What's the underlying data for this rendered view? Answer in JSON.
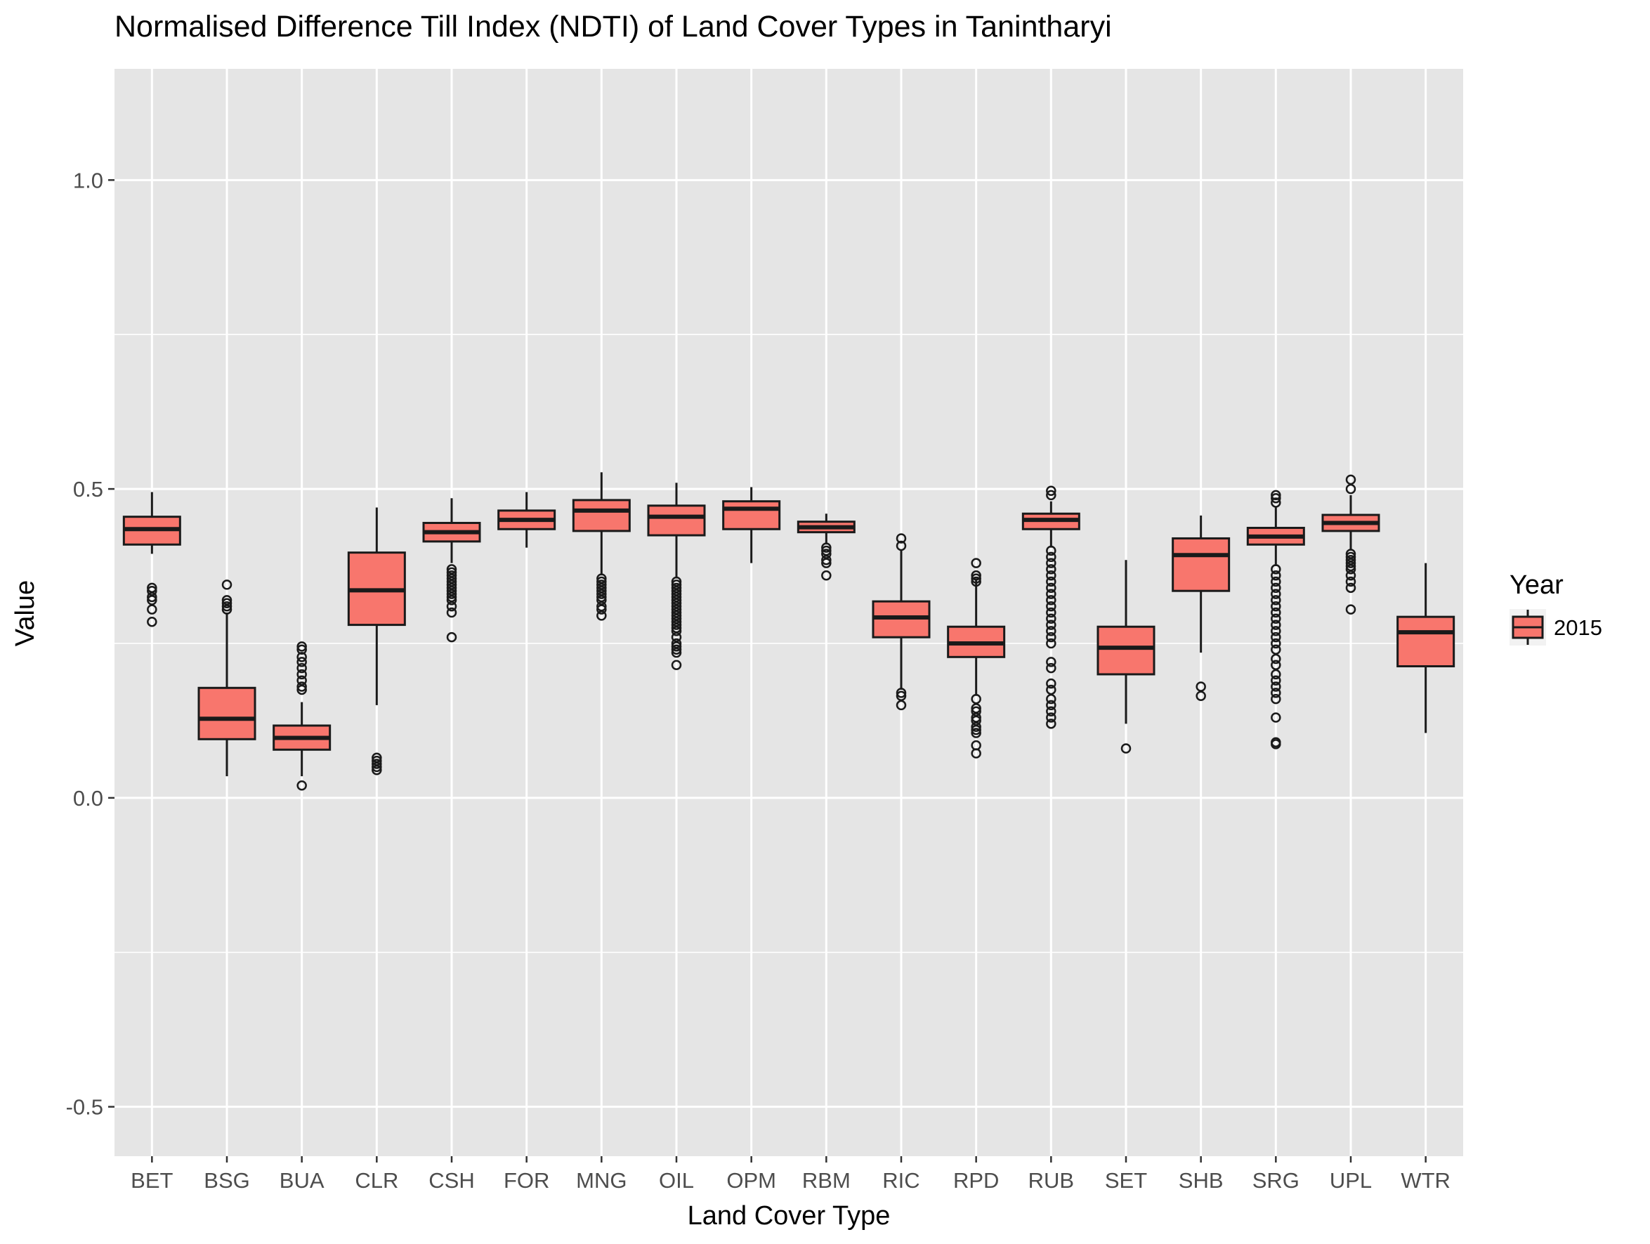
{
  "chart_data": {
    "type": "boxplot",
    "title": "Normalised Difference Till Index (NDTI) of Land Cover Types in Tanintharyi",
    "xlabel": "Land Cover Type",
    "ylabel": "Value",
    "ylim": [
      -0.58,
      1.18
    ],
    "y_ticks": [
      -0.5,
      0.0,
      0.5,
      1.0
    ],
    "y_tick_labels": [
      "-0.5",
      "0.0",
      "0.5",
      "1.0"
    ],
    "grid": true,
    "legend": {
      "title": "Year",
      "position": "right",
      "entries": [
        "2015"
      ]
    },
    "colors": {
      "fill": "#f8766d",
      "panel": "#e5e5e5",
      "grid": "#ffffff",
      "stroke": "#1a1a1a"
    },
    "categories": [
      "BET",
      "BSG",
      "BUA",
      "CLR",
      "CSH",
      "FOR",
      "MNG",
      "OIL",
      "OPM",
      "RBM",
      "RIC",
      "RPD",
      "RUB",
      "SET",
      "SHB",
      "SRG",
      "UPL",
      "WTR"
    ],
    "series": [
      {
        "name": "2015",
        "boxes": [
          {
            "min": 0.395,
            "q1": 0.41,
            "median": 0.435,
            "q3": 0.455,
            "max": 0.495,
            "outliers": [
              0.34,
              0.335,
              0.325,
              0.32,
              0.305,
              0.285
            ]
          },
          {
            "min": 0.035,
            "q1": 0.095,
            "median": 0.128,
            "q3": 0.178,
            "max": 0.3,
            "outliers": [
              0.345,
              0.32,
              0.315,
              0.31,
              0.305
            ]
          },
          {
            "min": 0.035,
            "q1": 0.078,
            "median": 0.097,
            "q3": 0.117,
            "max": 0.155,
            "outliers": [
              0.245,
              0.24,
              0.228,
              0.22,
              0.21,
              0.2,
              0.19,
              0.18,
              0.175,
              0.02
            ]
          },
          {
            "min": 0.15,
            "q1": 0.28,
            "median": 0.336,
            "q3": 0.397,
            "max": 0.47,
            "outliers": [
              0.065,
              0.06,
              0.055,
              0.05,
              0.045
            ]
          },
          {
            "min": 0.38,
            "q1": 0.415,
            "median": 0.43,
            "q3": 0.445,
            "max": 0.485,
            "outliers": [
              0.37,
              0.365,
              0.36,
              0.355,
              0.35,
              0.345,
              0.34,
              0.335,
              0.33,
              0.325,
              0.32,
              0.31,
              0.3,
              0.26
            ]
          },
          {
            "min": 0.405,
            "q1": 0.435,
            "median": 0.45,
            "q3": 0.465,
            "max": 0.495,
            "outliers": []
          },
          {
            "min": 0.36,
            "q1": 0.432,
            "median": 0.465,
            "q3": 0.482,
            "max": 0.527,
            "outliers": [
              0.355,
              0.35,
              0.345,
              0.34,
              0.335,
              0.33,
              0.325,
              0.32,
              0.31,
              0.305,
              0.295
            ]
          },
          {
            "min": 0.355,
            "q1": 0.425,
            "median": 0.455,
            "q3": 0.473,
            "max": 0.51,
            "outliers": [
              0.35,
              0.345,
              0.34,
              0.335,
              0.33,
              0.325,
              0.32,
              0.315,
              0.31,
              0.305,
              0.3,
              0.295,
              0.29,
              0.285,
              0.28,
              0.275,
              0.27,
              0.26,
              0.25,
              0.245,
              0.24,
              0.235,
              0.215
            ]
          },
          {
            "min": 0.38,
            "q1": 0.435,
            "median": 0.468,
            "q3": 0.48,
            "max": 0.503,
            "outliers": []
          },
          {
            "min": 0.41,
            "q1": 0.43,
            "median": 0.438,
            "q3": 0.447,
            "max": 0.46,
            "outliers": [
              0.405,
              0.4,
              0.395,
              0.385,
              0.38,
              0.36
            ]
          },
          {
            "min": 0.175,
            "q1": 0.26,
            "median": 0.292,
            "q3": 0.318,
            "max": 0.4,
            "outliers": [
              0.42,
              0.408,
              0.17,
              0.165,
              0.15
            ]
          },
          {
            "min": 0.165,
            "q1": 0.228,
            "median": 0.25,
            "q3": 0.277,
            "max": 0.355,
            "outliers": [
              0.38,
              0.36,
              0.355,
              0.35,
              0.16,
              0.145,
              0.14,
              0.13,
              0.125,
              0.115,
              0.11,
              0.105,
              0.085,
              0.072
            ]
          },
          {
            "min": 0.405,
            "q1": 0.435,
            "median": 0.45,
            "q3": 0.46,
            "max": 0.48,
            "outliers": [
              0.497,
              0.49,
              0.4,
              0.39,
              0.38,
              0.37,
              0.36,
              0.35,
              0.34,
              0.33,
              0.32,
              0.31,
              0.3,
              0.29,
              0.28,
              0.27,
              0.26,
              0.25,
              0.22,
              0.21,
              0.185,
              0.175,
              0.16,
              0.15,
              0.14,
              0.13,
              0.12
            ]
          },
          {
            "min": 0.12,
            "q1": 0.2,
            "median": 0.243,
            "q3": 0.277,
            "max": 0.385,
            "outliers": [
              0.08
            ]
          },
          {
            "min": 0.235,
            "q1": 0.335,
            "median": 0.393,
            "q3": 0.42,
            "max": 0.457,
            "outliers": [
              0.18,
              0.165
            ]
          },
          {
            "min": 0.375,
            "q1": 0.41,
            "median": 0.423,
            "q3": 0.437,
            "max": 0.47,
            "outliers": [
              0.49,
              0.485,
              0.478,
              0.37,
              0.36,
              0.35,
              0.34,
              0.33,
              0.32,
              0.31,
              0.3,
              0.29,
              0.28,
              0.27,
              0.26,
              0.25,
              0.24,
              0.225,
              0.215,
              0.2,
              0.19,
              0.18,
              0.17,
              0.16,
              0.13,
              0.09,
              0.087
            ]
          },
          {
            "min": 0.4,
            "q1": 0.432,
            "median": 0.445,
            "q3": 0.458,
            "max": 0.49,
            "outliers": [
              0.515,
              0.5,
              0.395,
              0.39,
              0.385,
              0.38,
              0.375,
              0.37,
              0.36,
              0.35,
              0.34,
              0.305
            ]
          },
          {
            "min": 0.105,
            "q1": 0.213,
            "median": 0.268,
            "q3": 0.293,
            "max": 0.38,
            "outliers": []
          }
        ]
      }
    ]
  }
}
